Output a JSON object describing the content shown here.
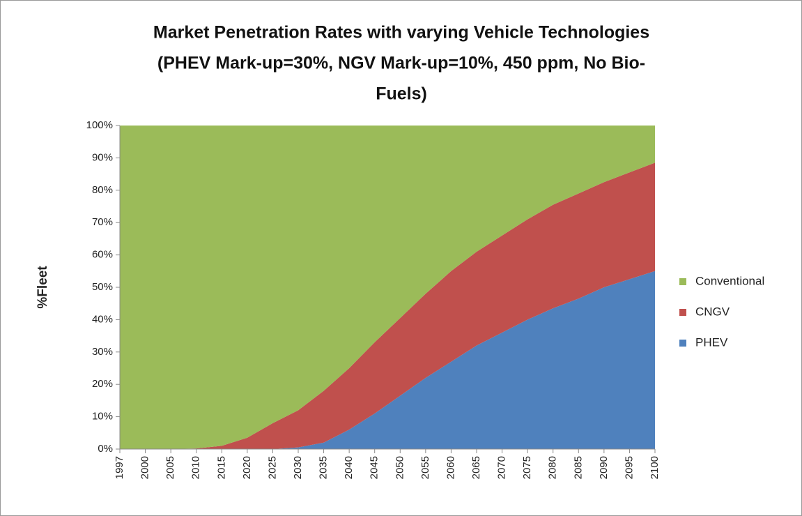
{
  "chart_data": {
    "type": "stacked_area",
    "title": [
      "Market Penetration Rates with varying Vehicle Technologies",
      "(PHEV Mark-up=30%, NGV Mark-up=10%, 450 ppm, No Bio-",
      "Fuels)"
    ],
    "y_label": "%Fleet",
    "categories": [
      "1997",
      "2000",
      "2005",
      "2010",
      "2015",
      "2020",
      "2025",
      "2030",
      "2035",
      "2040",
      "2045",
      "2050",
      "2055",
      "2060",
      "2065",
      "2070",
      "2075",
      "2080",
      "2085",
      "2090",
      "2095",
      "2100"
    ],
    "series": [
      {
        "name": "PHEV",
        "color": "#4f81bd",
        "values": [
          0,
          0,
          0,
          0,
          0,
          0,
          0,
          0.5,
          2,
          6,
          11,
          16.5,
          22,
          27,
          32,
          36,
          40,
          43.5,
          46.5,
          50,
          52.5,
          55
        ]
      },
      {
        "name": "CNGV",
        "color": "#c0504d",
        "values": [
          0,
          0,
          0,
          0.2,
          1,
          3.5,
          8,
          11.5,
          16,
          19,
          22,
          24,
          26,
          28,
          29,
          30,
          31,
          32,
          32.5,
          32.5,
          33,
          33.5
        ]
      },
      {
        "name": "Conventional",
        "color": "#9bbb59",
        "values": [
          100,
          100,
          100,
          99.8,
          99,
          96.5,
          92,
          88,
          82,
          75,
          67,
          59.5,
          52,
          45,
          39,
          34,
          29,
          24.5,
          21,
          17.5,
          14.5,
          11.5
        ]
      }
    ],
    "ylim": [
      0,
      100
    ],
    "yticks": [
      {
        "value": 0,
        "label": "0%"
      },
      {
        "value": 10,
        "label": "10%"
      },
      {
        "value": 20,
        "label": "20%"
      },
      {
        "value": 30,
        "label": "30%"
      },
      {
        "value": 40,
        "label": "40%"
      },
      {
        "value": 50,
        "label": "50%"
      },
      {
        "value": 60,
        "label": "60%"
      },
      {
        "value": 70,
        "label": "70%"
      },
      {
        "value": 80,
        "label": "80%"
      },
      {
        "value": 90,
        "label": "90%"
      },
      {
        "value": 100,
        "label": "100%"
      }
    ],
    "legend": "right"
  }
}
